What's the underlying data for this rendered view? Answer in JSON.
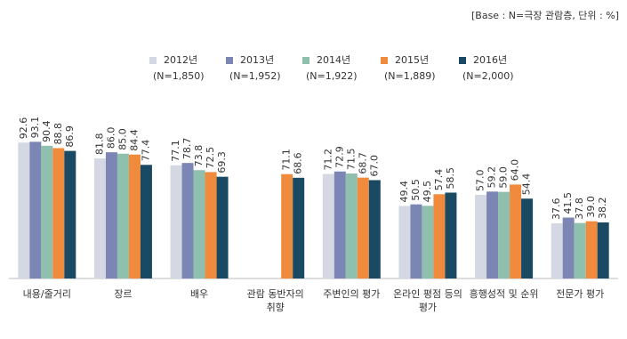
{
  "chart_data": {
    "type": "bar",
    "note": "[Base : N=극장 관람층, 단위 : %]",
    "categories": [
      "내용/줄거리",
      "장르",
      "배우",
      "관람 동반자의 취향",
      "주변인의 평가",
      "온라인 평점 등의 평가",
      "흥행성적 및 순위",
      "전문가 평가"
    ],
    "series": [
      {
        "name": "2012년",
        "sample_size": "(N=1,850)",
        "color": "#d3d8e3",
        "values": [
          92.6,
          81.8,
          77.1,
          null,
          71.2,
          49.4,
          57.0,
          37.6
        ],
        "value_labels": [
          "92.6",
          "81.8",
          "77.1",
          null,
          "71.2",
          "49.4",
          "57.0",
          "37.6"
        ]
      },
      {
        "name": "2013년",
        "sample_size": "(N=1,952)",
        "color": "#7b86b5",
        "values": [
          93.1,
          86.0,
          78.7,
          null,
          72.9,
          50.5,
          59.2,
          41.5
        ],
        "value_labels": [
          "93.1",
          "86.0",
          "78.7",
          null,
          "72.9",
          "50.5",
          "59.2",
          "41.5"
        ]
      },
      {
        "name": "2014년",
        "sample_size": "(N=1,922)",
        "color": "#8fbfad",
        "values": [
          90.4,
          85.0,
          73.8,
          null,
          71.5,
          49.5,
          59.0,
          37.8
        ],
        "value_labels": [
          "90.4",
          "85.0",
          "73.8",
          null,
          "71.5",
          "49.5",
          "59.0",
          "37.8"
        ]
      },
      {
        "name": "2015년",
        "sample_size": "(N=1,889)",
        "color": "#f08a3c",
        "values": [
          88.8,
          84.4,
          72.5,
          71.1,
          68.7,
          57.4,
          64.0,
          39.0
        ],
        "value_labels": [
          "88.8",
          "84.4",
          "72.5",
          "71.1",
          "68.7",
          "57.4",
          "64.0",
          "39.0"
        ]
      },
      {
        "name": "2016년",
        "sample_size": "(N=2,000)",
        "color": "#1a4a63",
        "values": [
          86.9,
          77.4,
          69.3,
          68.6,
          67.0,
          58.5,
          54.4,
          38.2
        ],
        "value_labels": [
          "86.9",
          "77.4",
          "69.3",
          "68.6",
          "67.0",
          "58.5",
          "54.4",
          "38.2"
        ]
      }
    ],
    "ylim": [
      0,
      100
    ]
  }
}
